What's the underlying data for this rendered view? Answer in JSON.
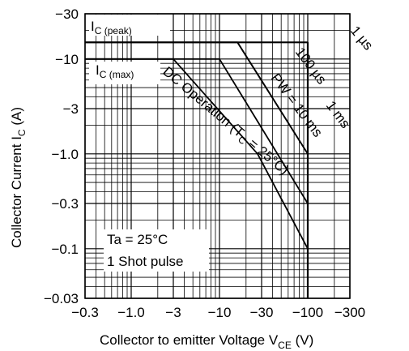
{
  "chart_data": {
    "type": "line",
    "scale": {
      "x": "log",
      "y": "log"
    },
    "grid": true,
    "xlim": [
      -0.3,
      -300
    ],
    "ylim": [
      -0.03,
      -30
    ],
    "x_ticks": [
      {
        "value": -0.3,
        "label": "−0.3"
      },
      {
        "value": -1,
        "label": "−1.0"
      },
      {
        "value": -3,
        "label": "−3"
      },
      {
        "value": -10,
        "label": "−10"
      },
      {
        "value": -30,
        "label": "−30"
      },
      {
        "value": -100,
        "label": "−100"
      },
      {
        "value": -300,
        "label": "−300"
      }
    ],
    "y_ticks": [
      {
        "value": -30,
        "label": "−30"
      },
      {
        "value": -10,
        "label": "−10"
      },
      {
        "value": -3,
        "label": "−3"
      },
      {
        "value": -1,
        "label": "−1.0"
      },
      {
        "value": -0.3,
        "label": "−0.3"
      },
      {
        "value": -0.1,
        "label": "−0.1"
      },
      {
        "value": -0.03,
        "label": "−0.03"
      }
    ],
    "xlabel": {
      "main": "Collector to emitter Voltage  V",
      "sub": "CE",
      "unit": "  (V)"
    },
    "ylabel": {
      "main": "Collector Current  I",
      "sub": "C",
      "unit": "  (A)"
    },
    "annotations": [
      "Ta = 25°C",
      "1 Shot pulse"
    ],
    "ic_peak": {
      "main": "I",
      "sub": "C (peak)",
      "value": -15
    },
    "ic_max": {
      "main": "I",
      "sub": "C (max)",
      "value": -10
    },
    "vceo_max": -100,
    "series": [
      {
        "label_main": "DC Operation (T",
        "label_sub": "C",
        "label_tail": " = 25°C)",
        "x": [
          -0.3,
          -3,
          -27,
          -100
        ],
        "y": [
          -10,
          -10,
          -1.0,
          -0.1
        ]
      },
      {
        "label": "PW = 10 ms",
        "x": [
          -0.3,
          -10,
          -100
        ],
        "y": [
          -10,
          -10,
          -0.3
        ]
      },
      {
        "label": "100 µs",
        "x": [
          -0.3,
          -16,
          -100
        ],
        "y": [
          -15,
          -15,
          -1.0
        ]
      },
      {
        "label": "1 ms",
        "x": [
          -0.3,
          -16,
          -100
        ],
        "y": [
          -15,
          -15,
          -1.0
        ]
      },
      {
        "label": "1 µs",
        "x": [
          -0.3,
          -100,
          -100
        ],
        "y": [
          -15,
          -15,
          -0.03
        ]
      }
    ]
  }
}
